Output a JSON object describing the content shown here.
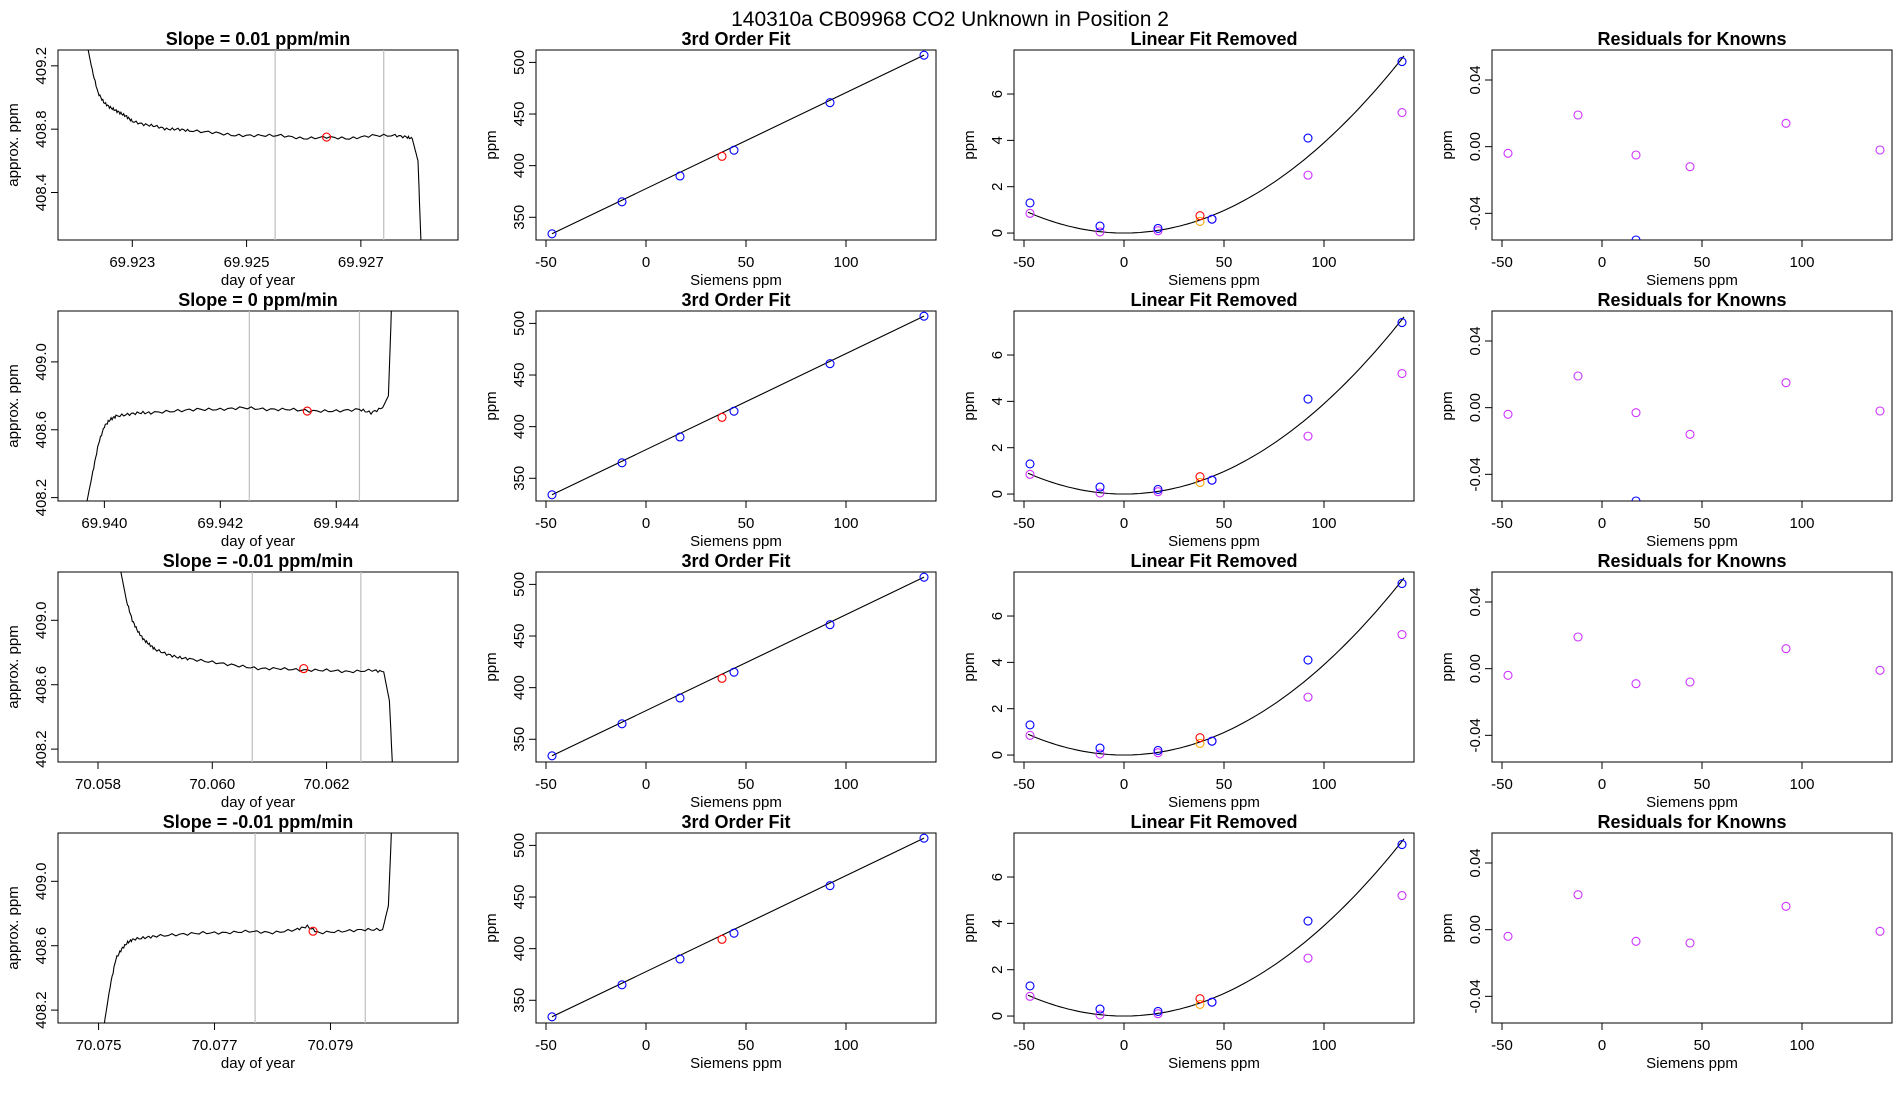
{
  "header": {
    "title": "140310a     CB09968    CO2 Unknown in Position  2"
  },
  "colors": {
    "axis": "#000000",
    "trace": "#000000",
    "vline": "#bebebe",
    "unknown_point": "#ff0000",
    "standard_point": "#0000ff",
    "residual_point": "#cc33ff",
    "residual_orange": "#ffa500"
  },
  "labels": {
    "day_of_year": "day of year",
    "approx_ppm": "approx. ppm",
    "ppm": "ppm",
    "siemens_ppm": "Siemens ppm",
    "fit_title": "3rd Order Fit",
    "linear_removed_title": "Linear Fit Removed",
    "residuals_title": "Residuals for Knowns"
  },
  "chart_data": [
    {
      "type": "line",
      "row": 0,
      "col": 0,
      "title": "Slope =  0.01  ppm/min",
      "xlabel": "day of year",
      "ylabel": "approx. ppm",
      "xlim": [
        69.9217,
        69.9287
      ],
      "ylim": [
        408.1,
        409.3
      ],
      "xticks": [
        69.923,
        69.925,
        69.927
      ],
      "xtick_labels": [
        "69.923",
        "69.925",
        "69.927"
      ],
      "yticks": [
        408.4,
        408.8,
        409.2
      ],
      "ytick_labels": [
        "408.4",
        "408.8",
        "409.2"
      ],
      "series_x": [
        69.9222,
        69.9223,
        69.9224,
        69.9225,
        69.9226,
        69.9227,
        69.9228,
        69.9229,
        69.923,
        69.9232,
        69.9234,
        69.9236,
        69.9238,
        69.924,
        69.9244,
        69.9248,
        69.9252,
        69.9256,
        69.926,
        69.9264,
        69.9268,
        69.9272,
        69.9276,
        69.9278,
        69.9279,
        69.928,
        69.92805
      ],
      "series_y": [
        409.35,
        409.17,
        409.03,
        408.97,
        408.94,
        408.92,
        408.9,
        408.88,
        408.85,
        408.83,
        408.82,
        408.8,
        408.8,
        408.79,
        408.78,
        408.76,
        408.76,
        408.76,
        408.74,
        408.75,
        408.74,
        408.76,
        408.76,
        408.75,
        408.74,
        408.6,
        408.1
      ],
      "vlines": [
        69.9255,
        69.9274
      ],
      "mean_point": [
        69.9264,
        408.75
      ]
    },
    {
      "type": "line",
      "row": 1,
      "col": 0,
      "title": "Slope =  0  ppm/min",
      "xlabel": "day of year",
      "ylabel": "approx. ppm",
      "xlim": [
        69.9392,
        69.9461
      ],
      "ylim": [
        408.18,
        409.3
      ],
      "xticks": [
        69.94,
        69.942,
        69.944
      ],
      "xtick_labels": [
        "69.940",
        "69.942",
        "69.944"
      ],
      "yticks": [
        408.2,
        408.6,
        409.0
      ],
      "ytick_labels": [
        "408.2",
        "408.6",
        "409.0"
      ],
      "series_x": [
        69.9397,
        69.9398,
        69.9399,
        69.94,
        69.9401,
        69.9402,
        69.9404,
        69.9406,
        69.9408,
        69.9412,
        69.9416,
        69.942,
        69.9424,
        69.9428,
        69.9432,
        69.9436,
        69.944,
        69.9444,
        69.9446,
        69.9448,
        69.9449,
        69.94495
      ],
      "series_y": [
        408.18,
        408.35,
        408.52,
        408.62,
        408.66,
        408.68,
        408.69,
        408.7,
        408.7,
        408.71,
        408.72,
        408.72,
        408.73,
        408.72,
        408.72,
        408.71,
        408.71,
        408.72,
        408.7,
        408.73,
        408.8,
        409.3
      ],
      "vlines": [
        69.9425,
        69.9444
      ],
      "mean_point": [
        69.9435,
        408.71
      ]
    },
    {
      "type": "line",
      "row": 2,
      "col": 0,
      "title": "Slope =  -0.01  ppm/min",
      "xlabel": "day of year",
      "ylabel": "approx. ppm",
      "xlim": [
        70.0573,
        70.0643
      ],
      "ylim": [
        408.12,
        409.3
      ],
      "xticks": [
        70.058,
        70.06,
        70.062
      ],
      "xtick_labels": [
        "70.058",
        "70.060",
        "70.062"
      ],
      "yticks": [
        408.2,
        408.6,
        409.0
      ],
      "ytick_labels": [
        "408.2",
        "408.6",
        "409.0"
      ],
      "series_x": [
        70.0584,
        70.0585,
        70.0586,
        70.0587,
        70.0588,
        70.0589,
        70.059,
        70.0592,
        70.0594,
        70.0596,
        70.06,
        70.0604,
        70.0608,
        70.0612,
        70.0616,
        70.062,
        70.0624,
        70.0628,
        70.063,
        70.0631,
        70.06315
      ],
      "series_y": [
        409.3,
        409.12,
        409.0,
        408.93,
        408.88,
        408.85,
        408.82,
        408.79,
        408.77,
        408.76,
        408.74,
        408.72,
        408.7,
        408.7,
        408.69,
        408.69,
        408.68,
        408.69,
        408.68,
        408.5,
        408.12
      ],
      "vlines": [
        70.0607,
        70.0626
      ],
      "mean_point": [
        70.0616,
        408.7
      ]
    },
    {
      "type": "line",
      "row": 3,
      "col": 0,
      "title": "Slope =  -0.01  ppm/min",
      "xlabel": "day of year",
      "ylabel": "approx. ppm",
      "xlim": [
        70.0743,
        70.0812
      ],
      "ylim": [
        408.12,
        409.3
      ],
      "xticks": [
        70.075,
        70.077,
        70.079
      ],
      "xtick_labels": [
        "70.075",
        "70.077",
        "70.079"
      ],
      "yticks": [
        408.2,
        408.6,
        409.0
      ],
      "ytick_labels": [
        "408.2",
        "408.6",
        "409.0"
      ],
      "series_x": [
        70.0751,
        70.0752,
        70.0753,
        70.0754,
        70.0755,
        70.0756,
        70.0758,
        70.076,
        70.0764,
        70.0768,
        70.0772,
        70.0776,
        70.078,
        70.0784,
        70.0786,
        70.0788,
        70.0792,
        70.0796,
        70.0799,
        70.08,
        70.08005
      ],
      "series_y": [
        408.12,
        408.35,
        408.52,
        408.58,
        408.62,
        408.64,
        408.65,
        408.66,
        408.67,
        408.68,
        408.68,
        408.69,
        408.68,
        408.7,
        408.72,
        408.68,
        408.69,
        408.7,
        408.7,
        408.85,
        409.3
      ],
      "vlines": [
        70.0777,
        70.0796
      ],
      "mean_point": [
        70.0787,
        408.69
      ]
    },
    {
      "type": "scatter",
      "row": 0,
      "col": 1,
      "title": "3rd Order Fit",
      "xlabel": "Siemens ppm",
      "ylabel": "ppm",
      "xlim": [
        -55,
        145
      ],
      "ylim": [
        328,
        512
      ],
      "xticks": [
        -50,
        0,
        50,
        100
      ],
      "xtick_labels": [
        "-50",
        "0",
        "50",
        "100"
      ],
      "yticks": [
        350,
        400,
        450,
        500
      ],
      "ytick_labels": [
        "350",
        "400",
        "450",
        "500"
      ],
      "knowns_x": [
        -47,
        -12,
        17,
        44,
        92,
        139
      ],
      "knowns_y": [
        334,
        365,
        390,
        415,
        461,
        507
      ],
      "unknown_x": [
        38
      ],
      "unknown_y": [
        409
      ],
      "fit_line": [
        [
          -47,
          334
        ],
        [
          139,
          507
        ]
      ]
    },
    {
      "type": "scatter",
      "row": 1,
      "col": 1,
      "title": "3rd Order Fit",
      "xlabel": "Siemens ppm",
      "ylabel": "ppm",
      "xlim": [
        -55,
        145
      ],
      "ylim": [
        328,
        512
      ],
      "xticks": [
        -50,
        0,
        50,
        100
      ],
      "xtick_labels": [
        "-50",
        "0",
        "50",
        "100"
      ],
      "yticks": [
        350,
        400,
        450,
        500
      ],
      "ytick_labels": [
        "350",
        "400",
        "450",
        "500"
      ],
      "knowns_x": [
        -47,
        -12,
        17,
        44,
        92,
        139
      ],
      "knowns_y": [
        334,
        365,
        390,
        415,
        461,
        507
      ],
      "unknown_x": [
        38
      ],
      "unknown_y": [
        409
      ],
      "fit_line": [
        [
          -47,
          334
        ],
        [
          139,
          507
        ]
      ]
    },
    {
      "type": "scatter",
      "row": 2,
      "col": 1,
      "title": "3rd Order Fit",
      "xlabel": "Siemens ppm",
      "ylabel": "ppm",
      "xlim": [
        -55,
        145
      ],
      "ylim": [
        328,
        512
      ],
      "xticks": [
        -50,
        0,
        50,
        100
      ],
      "xtick_labels": [
        "-50",
        "0",
        "50",
        "100"
      ],
      "yticks": [
        350,
        400,
        450,
        500
      ],
      "ytick_labels": [
        "350",
        "400",
        "450",
        "500"
      ],
      "knowns_x": [
        -47,
        -12,
        17,
        44,
        92,
        139
      ],
      "knowns_y": [
        334,
        365,
        390,
        415,
        461,
        507
      ],
      "unknown_x": [
        38
      ],
      "unknown_y": [
        409
      ],
      "fit_line": [
        [
          -47,
          334
        ],
        [
          139,
          507
        ]
      ]
    },
    {
      "type": "scatter",
      "row": 3,
      "col": 1,
      "title": "3rd Order Fit",
      "xlabel": "Siemens ppm",
      "ylabel": "ppm",
      "xlim": [
        -55,
        145
      ],
      "ylim": [
        328,
        512
      ],
      "xticks": [
        -50,
        0,
        50,
        100
      ],
      "xtick_labels": [
        "-50",
        "0",
        "50",
        "100"
      ],
      "yticks": [
        350,
        400,
        450,
        500
      ],
      "ytick_labels": [
        "350",
        "400",
        "450",
        "500"
      ],
      "knowns_x": [
        -47,
        -12,
        17,
        44,
        92,
        139
      ],
      "knowns_y": [
        334,
        365,
        390,
        415,
        461,
        507
      ],
      "unknown_x": [
        38
      ],
      "unknown_y": [
        409
      ],
      "fit_line": [
        [
          -47,
          334
        ],
        [
          139,
          507
        ]
      ]
    },
    {
      "type": "scatter",
      "row": 0,
      "col": 2,
      "title": "Linear Fit Removed",
      "xlabel": "Siemens ppm",
      "ylabel": "ppm",
      "xlim": [
        -55,
        145
      ],
      "ylim": [
        -0.3,
        7.9
      ],
      "xticks": [
        -50,
        0,
        50,
        100
      ],
      "xtick_labels": [
        "-50",
        "0",
        "50",
        "100"
      ],
      "yticks": [
        0,
        2,
        4,
        6
      ],
      "ytick_labels": [
        "0",
        "2",
        "4",
        "6"
      ],
      "knowns_x": [
        -47,
        -12,
        17,
        44,
        92,
        139
      ],
      "knowns_y": [
        1.3,
        0.3,
        0.2,
        0.6,
        4.1,
        7.4
      ],
      "unknown_x": [
        38
      ],
      "unknown_y": [
        0.75
      ],
      "raw_x": [
        -47,
        -12,
        17,
        38,
        44,
        92,
        139
      ],
      "raw_y": [
        0.85,
        0.05,
        0.1,
        0.5,
        0.6,
        2.5,
        5.2
      ],
      "curve_coeff": [
        0.0,
        0.0,
        0.00039
      ]
    },
    {
      "type": "scatter",
      "row": 1,
      "col": 2,
      "title": "Linear Fit Removed",
      "xlabel": "Siemens ppm",
      "ylabel": "ppm",
      "xlim": [
        -55,
        145
      ],
      "ylim": [
        -0.3,
        7.9
      ],
      "xticks": [
        -50,
        0,
        50,
        100
      ],
      "xtick_labels": [
        "-50",
        "0",
        "50",
        "100"
      ],
      "yticks": [
        0,
        2,
        4,
        6
      ],
      "ytick_labels": [
        "0",
        "2",
        "4",
        "6"
      ],
      "knowns_x": [
        -47,
        -12,
        17,
        44,
        92,
        139
      ],
      "knowns_y": [
        1.3,
        0.3,
        0.2,
        0.6,
        4.1,
        7.4
      ],
      "unknown_x": [
        38
      ],
      "unknown_y": [
        0.75
      ],
      "raw_x": [
        -47,
        -12,
        17,
        38,
        44,
        92,
        139
      ],
      "raw_y": [
        0.85,
        0.05,
        0.1,
        0.5,
        0.6,
        2.5,
        5.2
      ],
      "curve_coeff": [
        0.0,
        0.0,
        0.00039
      ]
    },
    {
      "type": "scatter",
      "row": 2,
      "col": 2,
      "title": "Linear Fit Removed",
      "xlabel": "Siemens ppm",
      "ylabel": "ppm",
      "xlim": [
        -55,
        145
      ],
      "ylim": [
        -0.3,
        7.9
      ],
      "xticks": [
        -50,
        0,
        50,
        100
      ],
      "xtick_labels": [
        "-50",
        "0",
        "50",
        "100"
      ],
      "yticks": [
        0,
        2,
        4,
        6
      ],
      "ytick_labels": [
        "0",
        "2",
        "4",
        "6"
      ],
      "knowns_x": [
        -47,
        -12,
        17,
        44,
        92,
        139
      ],
      "knowns_y": [
        1.3,
        0.3,
        0.2,
        0.6,
        4.1,
        7.4
      ],
      "unknown_x": [
        38
      ],
      "unknown_y": [
        0.75
      ],
      "raw_x": [
        -47,
        -12,
        17,
        38,
        44,
        92,
        139
      ],
      "raw_y": [
        0.85,
        0.05,
        0.1,
        0.5,
        0.6,
        2.5,
        5.2
      ],
      "curve_coeff": [
        0.0,
        0.0,
        0.00039
      ]
    },
    {
      "type": "scatter",
      "row": 3,
      "col": 2,
      "title": "Linear Fit Removed",
      "xlabel": "Siemens ppm",
      "ylabel": "ppm",
      "xlim": [
        -55,
        145
      ],
      "ylim": [
        -0.3,
        7.9
      ],
      "xticks": [
        -50,
        0,
        50,
        100
      ],
      "xtick_labels": [
        "-50",
        "0",
        "50",
        "100"
      ],
      "yticks": [
        0,
        2,
        4,
        6
      ],
      "ytick_labels": [
        "0",
        "2",
        "4",
        "6"
      ],
      "knowns_x": [
        -47,
        -12,
        17,
        44,
        92,
        139
      ],
      "knowns_y": [
        1.3,
        0.3,
        0.2,
        0.6,
        4.1,
        7.4
      ],
      "unknown_x": [
        38
      ],
      "unknown_y": [
        0.75
      ],
      "raw_x": [
        -47,
        -12,
        17,
        38,
        44,
        92,
        139
      ],
      "raw_y": [
        0.85,
        0.05,
        0.1,
        0.5,
        0.6,
        2.5,
        5.2
      ],
      "curve_coeff": [
        0.0,
        0.0,
        0.00039
      ]
    },
    {
      "type": "scatter",
      "row": 0,
      "col": 3,
      "title": "Residuals for Knowns",
      "xlabel": "Siemens ppm",
      "ylabel": "ppm",
      "xlim": [
        -55,
        145
      ],
      "ylim": [
        -0.056,
        0.058
      ],
      "xticks": [
        -50,
        0,
        50,
        100
      ],
      "xtick_labels": [
        "-50",
        "0",
        "50",
        "100"
      ],
      "yticks": [
        -0.04,
        0.0,
        0.04
      ],
      "ytick_labels": [
        "-0.04",
        "0.00",
        "0.04"
      ],
      "x": [
        -47,
        -12,
        17,
        44,
        92,
        139
      ],
      "y": [
        -0.004,
        0.019,
        -0.005,
        -0.012,
        0.014,
        -0.002
      ],
      "extra_x": [
        17
      ],
      "extra_y": [
        -0.056
      ]
    },
    {
      "type": "scatter",
      "row": 1,
      "col": 3,
      "title": "Residuals for Knowns",
      "xlabel": "Siemens ppm",
      "ylabel": "ppm",
      "xlim": [
        -55,
        145
      ],
      "ylim": [
        -0.056,
        0.058
      ],
      "xticks": [
        -50,
        0,
        50,
        100
      ],
      "xtick_labels": [
        "-50",
        "0",
        "50",
        "100"
      ],
      "yticks": [
        -0.04,
        0.0,
        0.04
      ],
      "ytick_labels": [
        "-0.04",
        "0.00",
        "0.04"
      ],
      "x": [
        -47,
        -12,
        17,
        44,
        92,
        139
      ],
      "y": [
        -0.004,
        0.019,
        -0.003,
        -0.016,
        0.015,
        -0.002
      ],
      "extra_x": [
        17
      ],
      "extra_y": [
        -0.056
      ]
    },
    {
      "type": "scatter",
      "row": 2,
      "col": 3,
      "title": "Residuals for Knowns",
      "xlabel": "Siemens ppm",
      "ylabel": "ppm",
      "xlim": [
        -55,
        145
      ],
      "ylim": [
        -0.056,
        0.058
      ],
      "xticks": [
        -50,
        0,
        50,
        100
      ],
      "xtick_labels": [
        "-50",
        "0",
        "50",
        "100"
      ],
      "yticks": [
        -0.04,
        0.0,
        0.04
      ],
      "ytick_labels": [
        "-0.04",
        "0.00",
        "0.04"
      ],
      "x": [
        -47,
        -12,
        17,
        44,
        92,
        139
      ],
      "y": [
        -0.004,
        0.019,
        -0.009,
        -0.008,
        0.012,
        -0.001
      ],
      "extra_x": [],
      "extra_y": []
    },
    {
      "type": "scatter",
      "row": 3,
      "col": 3,
      "title": "Residuals for Knowns",
      "xlabel": "Siemens ppm",
      "ylabel": "ppm",
      "xlim": [
        -55,
        145
      ],
      "ylim": [
        -0.056,
        0.058
      ],
      "xticks": [
        -50,
        0,
        50,
        100
      ],
      "xtick_labels": [
        "-50",
        "0",
        "50",
        "100"
      ],
      "yticks": [
        -0.04,
        0.0,
        0.04
      ],
      "ytick_labels": [
        "-0.04",
        "0.00",
        "0.04"
      ],
      "x": [
        -47,
        -12,
        17,
        44,
        92,
        139
      ],
      "y": [
        -0.004,
        0.021,
        -0.007,
        -0.008,
        0.014,
        -0.001
      ],
      "extra_x": [],
      "extra_y": []
    }
  ]
}
